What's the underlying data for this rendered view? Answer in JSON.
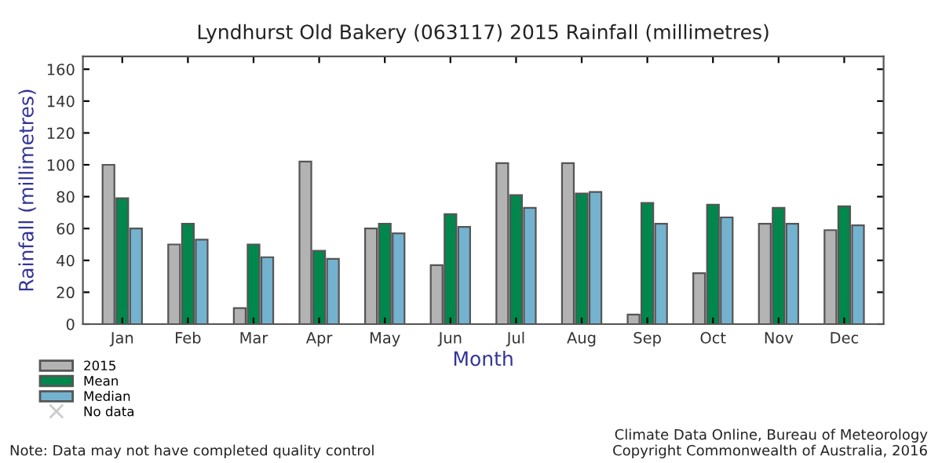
{
  "chart_data": {
    "type": "bar",
    "title": "Lyndhurst Old Bakery (063117) 2015 Rainfall (millimetres)",
    "xlabel": "Month",
    "ylabel": "Rainfall (millimetres)",
    "categories": [
      "Jan",
      "Feb",
      "Mar",
      "Apr",
      "May",
      "Jun",
      "Jul",
      "Aug",
      "Sep",
      "Oct",
      "Nov",
      "Dec"
    ],
    "series": [
      {
        "name": "2015",
        "color": "#b3b3b3",
        "values": [
          100,
          50,
          10,
          102,
          60,
          37,
          101,
          101,
          6,
          32,
          63,
          59
        ]
      },
      {
        "name": "Mean",
        "color": "#00884c",
        "values": [
          79,
          63,
          50,
          46,
          63,
          69,
          81,
          82,
          76,
          75,
          73,
          74
        ]
      },
      {
        "name": "Median",
        "color": "#74b3cf",
        "values": [
          60,
          53,
          42,
          41,
          57,
          61,
          73,
          83,
          63,
          67,
          63,
          62
        ]
      },
      {
        "name": "No data",
        "type": "scatter",
        "marker": "cross",
        "color": "#cccccc",
        "values": [
          null,
          null,
          null,
          null,
          null,
          null,
          null,
          null,
          null,
          null,
          null,
          null
        ]
      }
    ],
    "ylim": [
      0,
      168
    ],
    "yticks": [
      0,
      20,
      40,
      60,
      80,
      100,
      120,
      140,
      160
    ],
    "grid": false,
    "legend": "bottom left",
    "annotations": [
      "Note: Data may not have completed quality control",
      "Climate Data Online, Bureau of Meteorology\nCopyright Commonwealth of Australia, 2016"
    ]
  }
}
